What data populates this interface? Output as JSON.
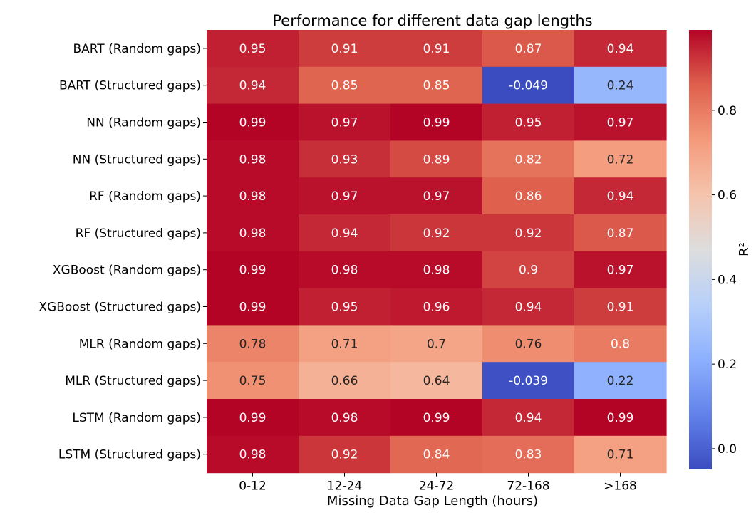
{
  "chart_data": {
    "type": "heatmap",
    "title": "Performance for different data gap lengths",
    "xlabel": "Missing Data Gap Length (hours)",
    "ylabel": "",
    "colorbar_label": "R²",
    "colormap": "coolwarm",
    "color_range": [
      -0.049,
      0.99
    ],
    "colorbar_ticks": [
      "0.0",
      "0.2",
      "0.4",
      "0.6",
      "0.8"
    ],
    "colorbar_tick_values": [
      0.0,
      0.2,
      0.4,
      0.6,
      0.8
    ],
    "columns": [
      "0-12",
      "12-24",
      "24-72",
      "72-168",
      ">168"
    ],
    "rows": [
      "BART (Random gaps)",
      "BART (Structured gaps)",
      "NN (Random gaps)",
      "NN (Structured gaps)",
      "RF (Random gaps)",
      "RF (Structured gaps)",
      "XGBoost (Random gaps)",
      "XGBoost (Structured gaps)",
      "MLR (Random gaps)",
      "MLR (Structured gaps)",
      "LSTM (Random gaps)",
      "LSTM (Structured gaps)"
    ],
    "values": [
      [
        0.95,
        0.91,
        0.91,
        0.87,
        0.94
      ],
      [
        0.94,
        0.85,
        0.85,
        -0.049,
        0.24
      ],
      [
        0.99,
        0.97,
        0.99,
        0.95,
        0.97
      ],
      [
        0.98,
        0.93,
        0.89,
        0.82,
        0.72
      ],
      [
        0.98,
        0.97,
        0.97,
        0.86,
        0.94
      ],
      [
        0.98,
        0.94,
        0.92,
        0.92,
        0.87
      ],
      [
        0.99,
        0.98,
        0.98,
        0.9,
        0.97
      ],
      [
        0.99,
        0.95,
        0.96,
        0.94,
        0.91
      ],
      [
        0.78,
        0.71,
        0.7,
        0.76,
        0.8
      ],
      [
        0.75,
        0.66,
        0.64,
        -0.039,
        0.22
      ],
      [
        0.99,
        0.98,
        0.99,
        0.94,
        0.99
      ],
      [
        0.98,
        0.92,
        0.84,
        0.83,
        0.71
      ]
    ],
    "value_labels": [
      [
        "0.95",
        "0.91",
        "0.91",
        "0.87",
        "0.94"
      ],
      [
        "0.94",
        "0.85",
        "0.85",
        "-0.049",
        "0.24"
      ],
      [
        "0.99",
        "0.97",
        "0.99",
        "0.95",
        "0.97"
      ],
      [
        "0.98",
        "0.93",
        "0.89",
        "0.82",
        "0.72"
      ],
      [
        "0.98",
        "0.97",
        "0.97",
        "0.86",
        "0.94"
      ],
      [
        "0.98",
        "0.94",
        "0.92",
        "0.92",
        "0.87"
      ],
      [
        "0.99",
        "0.98",
        "0.98",
        "0.9",
        "0.97"
      ],
      [
        "0.99",
        "0.95",
        "0.96",
        "0.94",
        "0.91"
      ],
      [
        "0.78",
        "0.71",
        "0.7",
        "0.76",
        "0.8"
      ],
      [
        "0.75",
        "0.66",
        "0.64",
        "-0.039",
        "0.22"
      ],
      [
        "0.99",
        "0.98",
        "0.99",
        "0.94",
        "0.99"
      ],
      [
        "0.98",
        "0.92",
        "0.84",
        "0.83",
        "0.71"
      ]
    ]
  }
}
